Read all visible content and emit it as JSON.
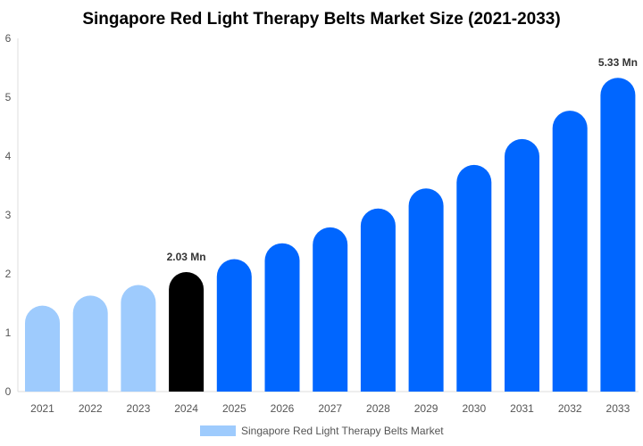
{
  "chart_data": {
    "type": "bar",
    "title": "Singapore Red Light Therapy Belts Market Size (2021-2033)",
    "categories": [
      "2021",
      "2022",
      "2023",
      "2024",
      "2025",
      "2026",
      "2027",
      "2028",
      "2029",
      "2030",
      "2031",
      "2032",
      "2033"
    ],
    "series": [
      {
        "name": "Singapore Red Light Therapy Belts Market",
        "values": [
          1.46,
          1.63,
          1.81,
          2.03,
          2.25,
          2.52,
          2.79,
          3.11,
          3.45,
          3.85,
          4.29,
          4.77,
          5.33
        ]
      }
    ],
    "data_labels": [
      {
        "category": "2024",
        "text": "2.03 Mn"
      },
      {
        "category": "2033",
        "text": "5.33 Mn"
      }
    ],
    "ylim": [
      0,
      6
    ],
    "yticks": [
      "0",
      "1",
      "2",
      "3",
      "4",
      "5",
      "6"
    ],
    "grid": false,
    "legend": "bottom",
    "colors": {
      "historical": "#9ecbfd",
      "base_year": "#000000",
      "forecast": "#0066ff",
      "axis": "#dddddd"
    }
  }
}
